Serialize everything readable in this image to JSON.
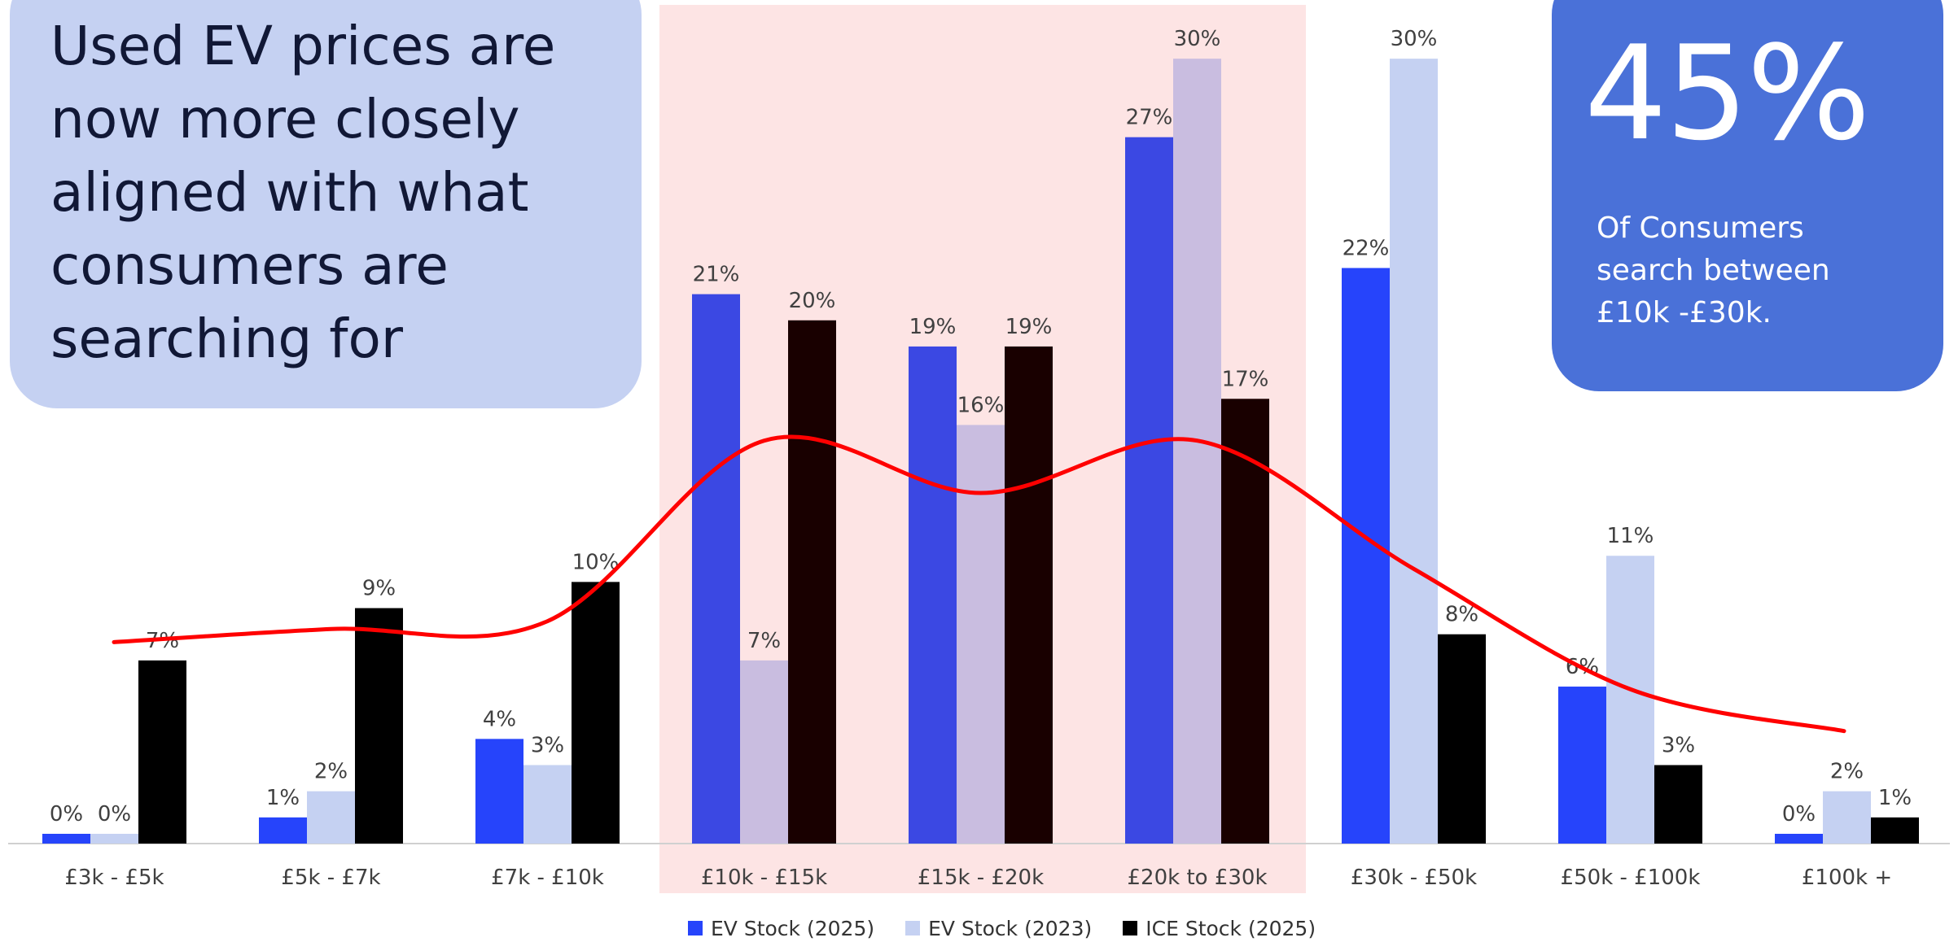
{
  "headline": "Used EV prices are now more closely aligned with what consumers are searching for",
  "stat": {
    "value": "45%",
    "caption": "Of Consumers search between £10k -£30k."
  },
  "colors": {
    "ev_2025": "#2644fb",
    "ev_2023": "#c5d1f2",
    "ice_2025": "#000000",
    "highlight": "#fde4e4",
    "trend_line": "#ff0000",
    "headline_box": "#c5d1f2",
    "stat_box": "#4a71d8"
  },
  "chart_data": {
    "type": "bar",
    "categories": [
      "£3k - £5k",
      "£5k - £7k",
      "£7k - £10k",
      "£10k - £15k",
      "£15k -  £20k",
      "£20k to £30k",
      "£30k - £50k",
      "£50k - £100k",
      "£100k +"
    ],
    "series": [
      {
        "name": "EV Stock (2025)",
        "values": [
          0,
          1,
          4,
          21,
          19,
          27,
          22,
          6,
          0
        ],
        "labels": [
          "0%",
          "1%",
          "4%",
          "21%",
          "19%",
          "27%",
          "22%",
          "6%",
          "0%"
        ],
        "color": "#2644fb"
      },
      {
        "name": "EV Stock (2023)",
        "values": [
          0,
          2,
          3,
          7,
          16,
          30,
          30,
          11,
          2
        ],
        "labels": [
          "0%",
          "2%",
          "3%",
          "7%",
          "16%",
          "30%",
          "30%",
          "11%",
          "2%"
        ],
        "color": "#c5d1f2"
      },
      {
        "name": "ICE Stock (2025)",
        "values": [
          7,
          9,
          10,
          20,
          19,
          17,
          8,
          3,
          1
        ],
        "labels": [
          "7%",
          "9%",
          "10%",
          "20%",
          "19%",
          "17%",
          "8%",
          "3%",
          "1%"
        ],
        "color": "#000000"
      }
    ],
    "trend_line": {
      "description": "consumer search distribution (smoothed)",
      "values": [
        7.7,
        8.2,
        8.5,
        15.4,
        13.4,
        15.4,
        10.5,
        5.9,
        4.3
      ]
    },
    "highlight_range": [
      "£10k - £15k",
      "£20k to £30k"
    ],
    "ylim": [
      0,
      31
    ],
    "legend_position": "bottom",
    "grid": false
  }
}
